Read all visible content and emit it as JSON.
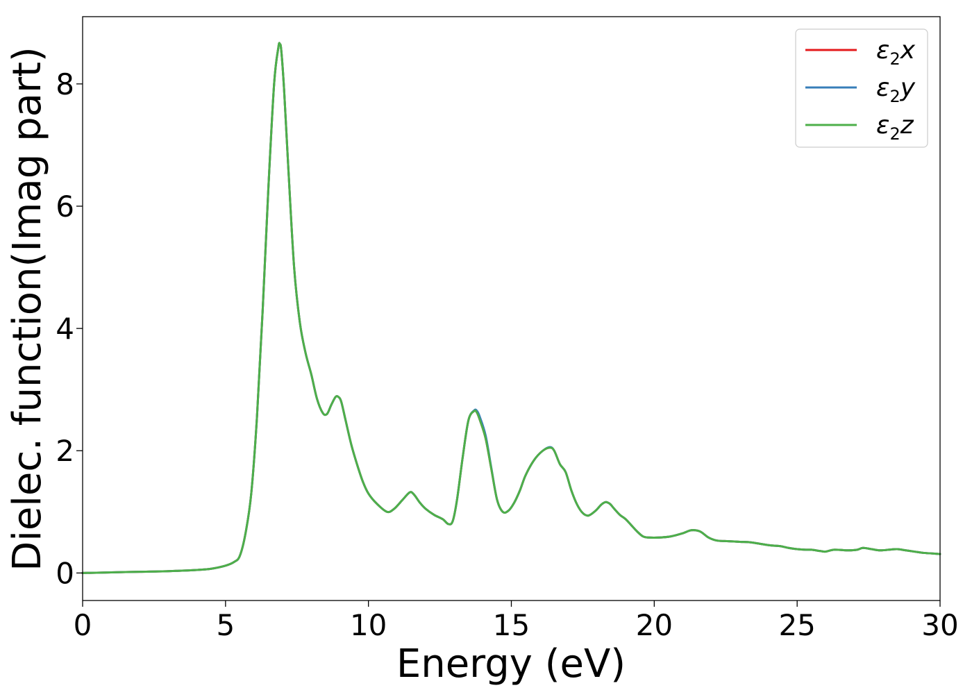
{
  "chart_data": {
    "type": "line",
    "title": "",
    "xlabel": "Energy (eV)",
    "ylabel": "Dielec. function(Imag part)",
    "xlim": [
      0,
      30
    ],
    "ylim": [
      -0.45,
      9.1
    ],
    "xticks": [
      0,
      5,
      10,
      15,
      20,
      25,
      30
    ],
    "yticks": [
      0,
      2,
      4,
      6,
      8
    ],
    "xtick_labels": [
      "0",
      "5",
      "10",
      "15",
      "20",
      "25",
      "30"
    ],
    "ytick_labels": [
      "0",
      "2",
      "4",
      "6",
      "8"
    ],
    "grid": false,
    "legend_position": "top-right",
    "x": [
      0,
      1,
      2,
      3,
      4,
      4.5,
      5,
      5.3,
      5.5,
      5.7,
      5.9,
      6.1,
      6.3,
      6.5,
      6.7,
      6.85,
      6.9,
      6.95,
      7.05,
      7.2,
      7.4,
      7.6,
      7.8,
      8.0,
      8.2,
      8.4,
      8.55,
      8.7,
      8.85,
      8.95,
      9.05,
      9.2,
      9.4,
      9.6,
      9.8,
      10.0,
      10.3,
      10.65,
      10.9,
      11.2,
      11.45,
      11.6,
      11.8,
      12.0,
      12.3,
      12.6,
      12.8,
      12.95,
      13.1,
      13.3,
      13.5,
      13.7,
      13.8,
      13.9,
      14.1,
      14.3,
      14.5,
      14.7,
      14.9,
      15.1,
      15.3,
      15.5,
      15.8,
      16.1,
      16.35,
      16.5,
      16.7,
      16.9,
      17.1,
      17.3,
      17.5,
      17.7,
      17.95,
      18.15,
      18.3,
      18.45,
      18.6,
      18.8,
      19.0,
      19.2,
      19.4,
      19.6,
      19.8,
      20.2,
      20.6,
      21.0,
      21.3,
      21.6,
      21.9,
      22.2,
      22.6,
      23.0,
      23.4,
      23.8,
      24.1,
      24.4,
      24.7,
      25.0,
      25.3,
      25.5,
      25.8,
      26.0,
      26.3,
      26.8,
      27.1,
      27.3,
      27.6,
      27.9,
      28.2,
      28.5,
      28.8,
      29.1,
      29.4,
      29.7,
      30.0
    ],
    "series": [
      {
        "name": "ε₂x",
        "name_base": "ε",
        "name_sub": "2",
        "name_suffix": "x",
        "color": "#e41a1c",
        "values": [
          0.0,
          0.01,
          0.02,
          0.03,
          0.05,
          0.07,
          0.12,
          0.18,
          0.28,
          0.65,
          1.3,
          2.55,
          4.3,
          6.3,
          8.0,
          8.6,
          8.65,
          8.55,
          7.9,
          6.6,
          5.0,
          4.1,
          3.6,
          3.25,
          2.85,
          2.62,
          2.6,
          2.75,
          2.88,
          2.88,
          2.8,
          2.5,
          2.1,
          1.78,
          1.5,
          1.3,
          1.13,
          1.0,
          1.05,
          1.2,
          1.32,
          1.28,
          1.15,
          1.05,
          0.95,
          0.88,
          0.8,
          0.85,
          1.2,
          1.9,
          2.5,
          2.65,
          2.62,
          2.5,
          2.2,
          1.7,
          1.2,
          1.0,
          1.02,
          1.15,
          1.35,
          1.6,
          1.85,
          2.0,
          2.05,
          2.0,
          1.78,
          1.65,
          1.35,
          1.12,
          0.98,
          0.94,
          1.02,
          1.12,
          1.16,
          1.13,
          1.05,
          0.95,
          0.88,
          0.78,
          0.68,
          0.6,
          0.58,
          0.58,
          0.6,
          0.65,
          0.7,
          0.68,
          0.58,
          0.53,
          0.52,
          0.51,
          0.5,
          0.47,
          0.45,
          0.44,
          0.41,
          0.39,
          0.38,
          0.38,
          0.36,
          0.35,
          0.38,
          0.37,
          0.38,
          0.41,
          0.39,
          0.37,
          0.38,
          0.39,
          0.37,
          0.35,
          0.33,
          0.32,
          0.31
        ]
      },
      {
        "name": "ε₂y",
        "name_base": "ε",
        "name_sub": "2",
        "name_suffix": "y",
        "color": "#377eb8",
        "values": [
          0.0,
          0.01,
          0.02,
          0.03,
          0.05,
          0.07,
          0.12,
          0.18,
          0.28,
          0.65,
          1.3,
          2.55,
          4.3,
          6.3,
          8.0,
          8.6,
          8.65,
          8.55,
          7.9,
          6.6,
          5.0,
          4.1,
          3.6,
          3.25,
          2.85,
          2.62,
          2.6,
          2.75,
          2.88,
          2.88,
          2.8,
          2.5,
          2.1,
          1.78,
          1.5,
          1.3,
          1.13,
          1.0,
          1.05,
          1.2,
          1.32,
          1.28,
          1.15,
          1.05,
          0.95,
          0.88,
          0.8,
          0.85,
          1.2,
          1.9,
          2.5,
          2.66,
          2.65,
          2.55,
          2.25,
          1.72,
          1.2,
          1.0,
          1.02,
          1.15,
          1.35,
          1.6,
          1.85,
          2.0,
          2.06,
          2.0,
          1.78,
          1.65,
          1.35,
          1.12,
          0.98,
          0.94,
          1.02,
          1.12,
          1.16,
          1.13,
          1.05,
          0.95,
          0.88,
          0.78,
          0.68,
          0.6,
          0.58,
          0.58,
          0.6,
          0.65,
          0.7,
          0.68,
          0.58,
          0.53,
          0.52,
          0.51,
          0.5,
          0.47,
          0.45,
          0.44,
          0.41,
          0.39,
          0.38,
          0.38,
          0.36,
          0.35,
          0.38,
          0.37,
          0.38,
          0.41,
          0.39,
          0.37,
          0.38,
          0.39,
          0.37,
          0.35,
          0.33,
          0.32,
          0.31
        ]
      },
      {
        "name": "ε₂z",
        "name_base": "ε",
        "name_sub": "2",
        "name_suffix": "z",
        "color": "#4daf4a",
        "values": [
          0.0,
          0.01,
          0.02,
          0.03,
          0.05,
          0.07,
          0.12,
          0.18,
          0.28,
          0.65,
          1.3,
          2.55,
          4.3,
          6.3,
          8.0,
          8.6,
          8.65,
          8.55,
          7.9,
          6.6,
          5.0,
          4.1,
          3.6,
          3.25,
          2.85,
          2.62,
          2.6,
          2.75,
          2.88,
          2.88,
          2.8,
          2.5,
          2.1,
          1.78,
          1.5,
          1.3,
          1.13,
          1.0,
          1.05,
          1.2,
          1.32,
          1.28,
          1.15,
          1.05,
          0.95,
          0.88,
          0.8,
          0.85,
          1.2,
          1.9,
          2.5,
          2.65,
          2.62,
          2.5,
          2.2,
          1.7,
          1.2,
          1.0,
          1.02,
          1.15,
          1.35,
          1.6,
          1.85,
          2.0,
          2.05,
          2.0,
          1.78,
          1.65,
          1.35,
          1.12,
          0.98,
          0.94,
          1.02,
          1.12,
          1.16,
          1.13,
          1.05,
          0.95,
          0.88,
          0.78,
          0.68,
          0.6,
          0.58,
          0.58,
          0.6,
          0.65,
          0.7,
          0.68,
          0.58,
          0.53,
          0.52,
          0.51,
          0.5,
          0.47,
          0.45,
          0.44,
          0.41,
          0.39,
          0.38,
          0.38,
          0.36,
          0.35,
          0.38,
          0.37,
          0.38,
          0.41,
          0.39,
          0.37,
          0.38,
          0.39,
          0.37,
          0.35,
          0.33,
          0.32,
          0.31
        ]
      }
    ]
  }
}
